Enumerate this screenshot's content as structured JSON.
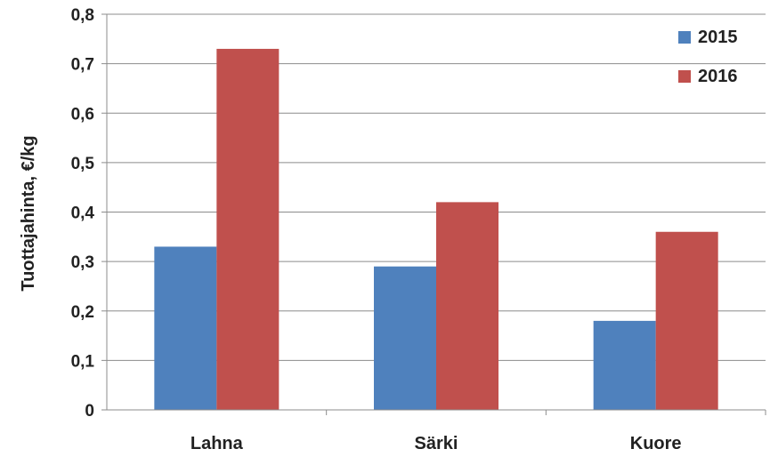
{
  "chart_data": {
    "type": "bar",
    "categories": [
      "Lahna",
      "Särki",
      "Kuore"
    ],
    "series": [
      {
        "name": "2015",
        "values": [
          0.33,
          0.29,
          0.18
        ],
        "color": "#4F81BD"
      },
      {
        "name": "2016",
        "values": [
          0.73,
          0.42,
          0.36
        ],
        "color": "#C0504D"
      }
    ],
    "ylabel": "Tuottajahinta, €/kg",
    "ylim": [
      0,
      0.8
    ],
    "yticks": [
      "0",
      "0,1",
      "0,2",
      "0,3",
      "0,4",
      "0,5",
      "0,6",
      "0,7",
      "0,8"
    ],
    "grid": true,
    "legend_position": "top-right"
  }
}
